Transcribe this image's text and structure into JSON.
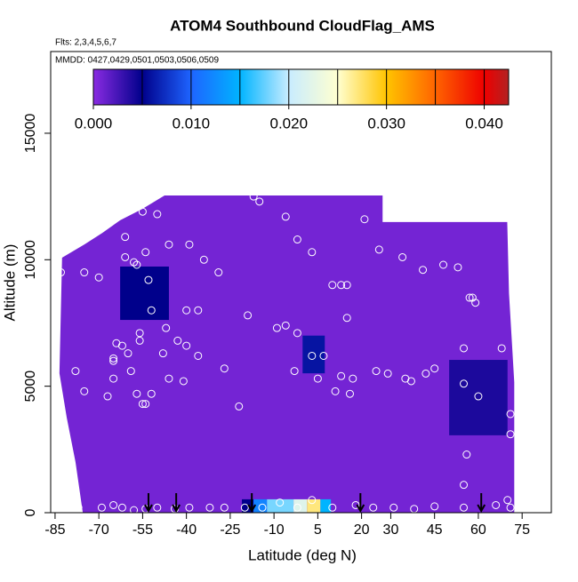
{
  "chart_data": {
    "type": "curtain",
    "title": "ATOM4 Southbound CloudFlag_AMS",
    "subtitle": "Flts: 2,3,4,5,6,7",
    "annotation": "MMDD: 0427,0429,0501,0503,0506,0509",
    "xlabel": "Latitude (deg N)",
    "ylabel": "Altitude (m)",
    "xlim": [
      -86.5,
      85
    ],
    "ylim": [
      0,
      18230
    ],
    "xticks": [
      -85,
      -70,
      -55,
      -40,
      -25,
      -10,
      5,
      20,
      30,
      45,
      60,
      75
    ],
    "yticks": [
      0,
      5000,
      10000,
      15000
    ],
    "clim": [
      0,
      0.0425
    ],
    "cticks": [
      {
        "value": 0,
        "label": "0.000"
      },
      {
        "value": 0.01,
        "label": "0.010"
      },
      {
        "value": 0.02,
        "label": "0.020"
      },
      {
        "value": 0.03,
        "label": "0.030"
      },
      {
        "value": 0.04,
        "label": "0.040"
      }
    ],
    "colorscale": [
      [
        0,
        "#8a2be2"
      ],
      [
        0.005,
        "#00008b"
      ],
      [
        0.01,
        "#1e64ff"
      ],
      [
        0.015,
        "#00b4ff"
      ],
      [
        0.02,
        "#c8ecff"
      ],
      [
        0.025,
        "#ffffd0"
      ],
      [
        0.03,
        "#ffc400"
      ],
      [
        0.035,
        "#ff6400"
      ],
      [
        0.04,
        "#ee0000"
      ],
      [
        0.0425,
        "#b22222"
      ]
    ],
    "background_value": 0.0008,
    "curtain_outline": {
      "lat": [
        -75.5,
        -78.0,
        -81.0,
        -83.5,
        -82.6,
        -74.9,
        -68.8,
        -62.7,
        -55.1,
        -47.5,
        27.2,
        27.2,
        69.9,
        70.5,
        72.3,
        72.3
      ],
      "alt": [
        0,
        2000,
        3760,
        5510,
        10080,
        10610,
        11060,
        11560,
        12010,
        12540,
        12540,
        11490,
        11490,
        8680,
        5160,
        0
      ]
    },
    "cells": [
      {
        "lat": [
          -62.7,
          -46
        ],
        "alt": [
          7620,
          9730
        ],
        "value": 0.005
      },
      {
        "lat": [
          -0.2,
          7.4
        ],
        "alt": [
          5510,
          7000
        ],
        "value": 0.006
      },
      {
        "lat": [
          50,
          70
        ],
        "alt": [
          3060,
          6040
        ],
        "value": 0.004
      },
      {
        "lat": [
          -21,
          -17
        ],
        "alt": [
          0,
          530
        ],
        "value": 0.005
      },
      {
        "lat": [
          -17,
          -12.4
        ],
        "alt": [
          0,
          530
        ],
        "value": 0.012
      },
      {
        "lat": [
          -12.4,
          -3.3
        ],
        "alt": [
          0,
          530
        ],
        "value": 0.018
      },
      {
        "lat": [
          -3.3,
          1.3
        ],
        "alt": [
          0,
          530
        ],
        "value": 0.022
      },
      {
        "lat": [
          1.3,
          5.9
        ],
        "alt": [
          0,
          530
        ],
        "value": 0.027
      },
      {
        "lat": [
          5.9,
          9.5
        ],
        "alt": [
          0,
          530
        ],
        "value": 0.015
      }
    ],
    "points": {
      "x": [
        -75,
        -83,
        -70,
        -61,
        -61,
        -58,
        -57,
        -53,
        -50,
        -55,
        -46,
        -39,
        -34,
        -29,
        -17,
        -15,
        -6,
        -2,
        3,
        10,
        13,
        15,
        15,
        21,
        26,
        34,
        41,
        48,
        53,
        57,
        58,
        59,
        -64,
        -62,
        -65,
        -65,
        -60,
        -56,
        -48,
        -47,
        -43,
        -40,
        -36,
        -27,
        -19,
        -9,
        -6,
        -2,
        -3,
        3,
        5,
        7,
        13,
        11,
        16,
        17,
        25,
        29,
        35,
        37,
        42,
        45,
        55,
        55,
        56,
        55,
        60,
        68,
        71,
        71,
        -78,
        -75,
        -67,
        -65,
        -59,
        -57,
        -55,
        -54,
        -52,
        -46,
        -41,
        -22,
        -77,
        -69,
        -65,
        -62,
        -58,
        -54,
        -50,
        -44,
        -39,
        -32,
        -27,
        -20,
        -14,
        -8,
        -2,
        3,
        10,
        18,
        24,
        31,
        38,
        45,
        55,
        66,
        70,
        71,
        -86,
        -36,
        -40,
        -52,
        -56,
        -54
      ],
      "y": [
        9500,
        9500,
        9300,
        10900,
        10100,
        9900,
        9800,
        9200,
        11800,
        11900,
        10600,
        10600,
        10000,
        9500,
        12500,
        12300,
        11700,
        10800,
        10300,
        9000,
        9000,
        9000,
        7700,
        11600,
        10400,
        10100,
        9600,
        9800,
        9700,
        8500,
        8500,
        8300,
        6700,
        6600,
        6100,
        6000,
        6300,
        6800,
        6300,
        7300,
        6800,
        6600,
        6200,
        5700,
        7800,
        7300,
        7400,
        7100,
        5600,
        6200,
        5300,
        6200,
        5400,
        4800,
        4700,
        5300,
        5600,
        5500,
        5300,
        5200,
        5500,
        5700,
        5100,
        6500,
        2300,
        1100,
        4600,
        6500,
        3900,
        3100,
        5600,
        4800,
        4600,
        5300,
        5600,
        4700,
        4300,
        4300,
        4700,
        5300,
        5200,
        4200,
        200,
        200,
        300,
        200,
        100,
        150,
        200,
        150,
        200,
        200,
        200,
        200,
        200,
        400,
        200,
        500,
        200,
        300,
        200,
        200,
        150,
        250,
        200,
        300,
        500,
        200,
        6300,
        8000,
        8000,
        8000,
        7100,
        10300
      ]
    },
    "arrows": [
      -53,
      -43.5,
      -17.6,
      19.6,
      61
    ]
  }
}
